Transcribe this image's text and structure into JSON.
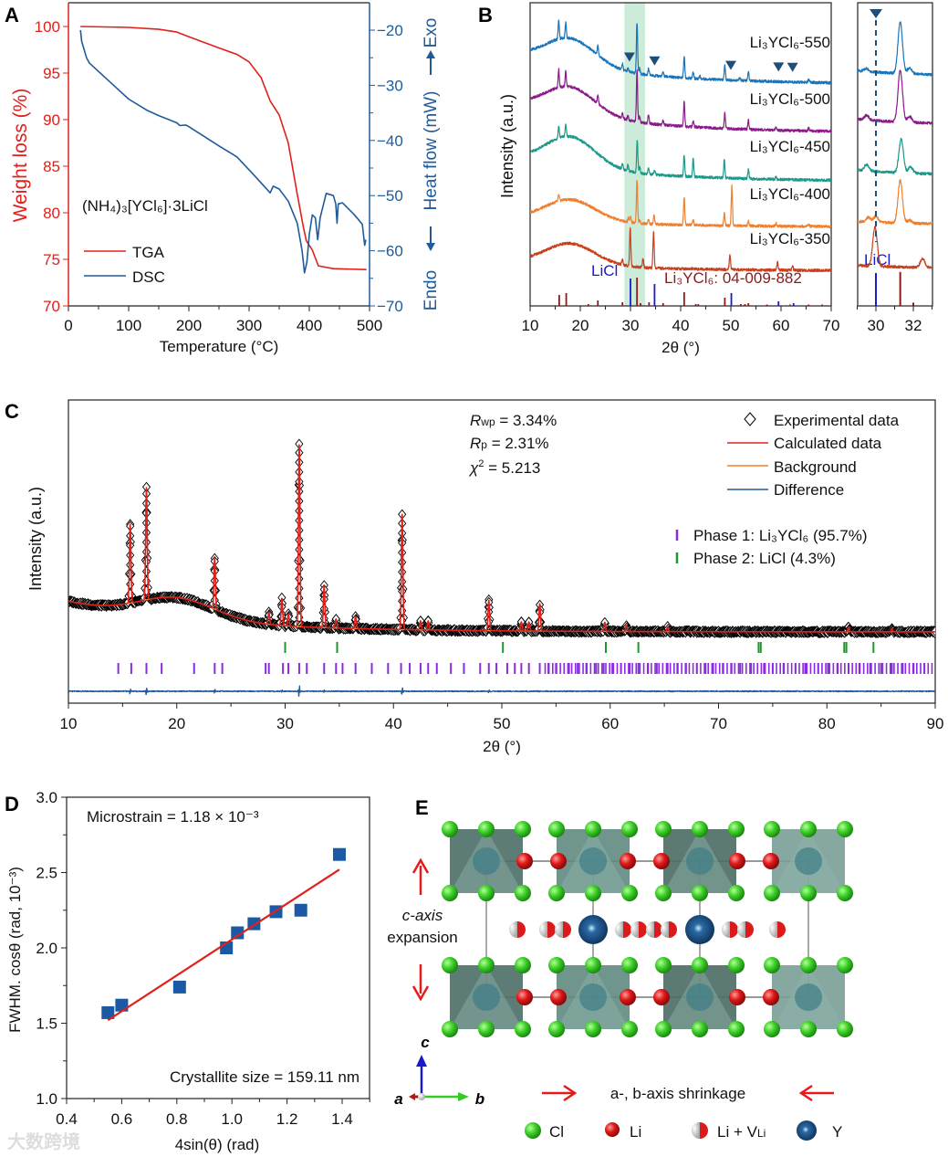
{
  "panels": {
    "a": "A",
    "b": "B",
    "c": "C",
    "d": "D",
    "e": "E"
  },
  "watermark": "大数跨境",
  "chart_data": [
    {
      "id": "A",
      "type": "line",
      "title": "",
      "xlabel": "Temperature (°C)",
      "ylabel": "Weight loss (%)",
      "y2label": "Heat flow (mW)",
      "exo_label": "Exo",
      "endo_label": "Endo",
      "annotation": "(NH₄)₃[YCl₆]·3LiCl",
      "xlim": [
        0,
        500
      ],
      "ylim": [
        70,
        102.5
      ],
      "y2lim": [
        -70,
        -15.5
      ],
      "xticks": [
        0,
        100,
        200,
        300,
        400,
        500
      ],
      "yticks": [
        70,
        75,
        80,
        85,
        90,
        95,
        100
      ],
      "y2ticks": [
        -20,
        -30,
        -40,
        -50,
        -60,
        -70
      ],
      "y2ticklabels": [
        "−20",
        "−30",
        "−40",
        "−50",
        "−60",
        "−70"
      ],
      "colors": {
        "TGA": "#e0201b",
        "DSC": "#1f5b9a"
      },
      "legend": "lower-left",
      "series": [
        {
          "name": "TGA",
          "axis": "left",
          "x": [
            20,
            100,
            150,
            180,
            200,
            250,
            280,
            300,
            320,
            335,
            350,
            365,
            380,
            390,
            395,
            405,
            415,
            440,
            495
          ],
          "y": [
            100,
            99.9,
            99.7,
            99.4,
            98.9,
            97.7,
            97,
            96.2,
            94.5,
            92,
            90.5,
            87.5,
            82,
            78.5,
            77,
            76,
            74.3,
            74,
            73.9
          ]
        },
        {
          "name": "DSC",
          "axis": "right",
          "x": [
            20,
            22,
            30,
            35,
            60,
            100,
            130,
            150,
            180,
            185,
            195,
            200,
            250,
            280,
            310,
            335,
            340,
            350,
            365,
            380,
            388,
            392,
            396,
            400,
            405,
            410,
            414,
            418,
            428,
            440,
            444,
            446,
            448,
            455,
            475,
            488,
            492,
            494
          ],
          "y": [
            -20,
            -22,
            -25,
            -26,
            -28.5,
            -32.5,
            -34.5,
            -35.5,
            -36.8,
            -37.3,
            -37.2,
            -37.5,
            -41,
            -43,
            -46.5,
            -49.5,
            -48.3,
            -48.8,
            -51,
            -55,
            -60,
            -64,
            -62,
            -57,
            -53.5,
            -54,
            -58,
            -54,
            -49.6,
            -50,
            -51.5,
            -55,
            -51.5,
            -51.3,
            -53.5,
            -55.2,
            -59,
            -58
          ]
        }
      ]
    },
    {
      "id": "B",
      "type": "line",
      "xlabel": "2θ (°)",
      "ylabel": "Intensity (a.u.)",
      "xlim": [
        10,
        70
      ],
      "xticks": [
        10,
        20,
        30,
        40,
        50,
        60,
        70
      ],
      "inset_xlim": [
        29.0,
        33.1
      ],
      "inset_xticks": [
        30,
        32
      ],
      "highlight_range": [
        28.8,
        32.9
      ],
      "marker_positions": [
        29.8,
        34.8,
        50.0,
        59.5,
        62.3
      ],
      "inset_dashed_at": 30.0,
      "series": [
        {
          "name": "Li₃YCl₆-550",
          "color": "#1b75bb",
          "offset": 77,
          "hump": 9,
          "left": 9,
          "peaks": [
            [
              15.7,
              6
            ],
            [
              17.1,
              5
            ],
            [
              23.5,
              3
            ],
            [
              28.4,
              2
            ],
            [
              29.5,
              1
            ],
            [
              31.3,
              17
            ],
            [
              31.8,
              2
            ],
            [
              33.6,
              2
            ],
            [
              36.5,
              1.5
            ],
            [
              40.7,
              7
            ],
            [
              42.5,
              2
            ],
            [
              43.8,
              1
            ],
            [
              48.8,
              5
            ],
            [
              51.8,
              1
            ],
            [
              53.5,
              3
            ],
            [
              65.5,
              1
            ]
          ]
        },
        {
          "name": "Li₃YCl₆-500",
          "color": "#8c1a8c",
          "offset": 61,
          "hump": 9,
          "left": 9,
          "peaks": [
            [
              15.7,
              6
            ],
            [
              17.1,
              5
            ],
            [
              23.5,
              3
            ],
            [
              28.4,
              2
            ],
            [
              29.5,
              1.5
            ],
            [
              31.3,
              17
            ],
            [
              31.8,
              2
            ],
            [
              33.6,
              3
            ],
            [
              36.5,
              1.5
            ],
            [
              40.7,
              8
            ],
            [
              42.5,
              2
            ],
            [
              48.8,
              5
            ],
            [
              53.5,
              3
            ],
            [
              59,
              1
            ],
            [
              65.5,
              1
            ]
          ]
        },
        {
          "name": "Li₃YCl₆-450",
          "color": "#1a9a8a",
          "offset": 45,
          "hump": 10,
          "left": 7,
          "peaks": [
            [
              15.7,
              4
            ],
            [
              17.1,
              4
            ],
            [
              28.4,
              2
            ],
            [
              29.5,
              2
            ],
            [
              31.35,
              11
            ],
            [
              31.85,
              2
            ],
            [
              33.6,
              2
            ],
            [
              34.8,
              1.5
            ],
            [
              40.7,
              7
            ],
            [
              42.5,
              6
            ],
            [
              48.7,
              6
            ],
            [
              53.5,
              3
            ],
            [
              59,
              1
            ]
          ]
        },
        {
          "name": "Li₃YCl₆-400",
          "color": "#f07f2e",
          "offset": 30,
          "hump": 7,
          "left": 3,
          "peaks": [
            [
              15.7,
              2
            ],
            [
              29.6,
              1.5
            ],
            [
              30.0,
              2
            ],
            [
              31.3,
              14
            ],
            [
              31.8,
              1
            ],
            [
              33.6,
              1.5
            ],
            [
              34.7,
              3
            ],
            [
              40.7,
              9
            ],
            [
              42.5,
              1.5
            ],
            [
              48.7,
              4
            ],
            [
              50.2,
              13
            ],
            [
              53.5,
              1.5
            ],
            [
              59,
              1
            ],
            [
              65.5,
              1
            ]
          ]
        },
        {
          "name": "Li₃YCl₆-350",
          "color": "#c8401e",
          "offset": 15.5,
          "hump": 7,
          "left": 3,
          "peaks": [
            [
              28.4,
              2
            ],
            [
              29.95,
              13
            ],
            [
              32.5,
              3
            ],
            [
              34.6,
              12
            ],
            [
              49.8,
              5
            ],
            [
              59.3,
              2.5
            ],
            [
              62.3,
              1.5
            ]
          ]
        }
      ],
      "references": [
        {
          "name": "LiCl",
          "color": "#1a1acc",
          "sticks": [
            [
              30.0,
              30
            ],
            [
              34.8,
              24
            ],
            [
              50.1,
              14
            ],
            [
              59.5,
              5
            ],
            [
              62.5,
              3
            ]
          ]
        },
        {
          "name": "Li₃YCl₆: 04-009-882",
          "color": "#8b1a1a",
          "sticks": [
            [
              15.8,
              12
            ],
            [
              17.2,
              14
            ],
            [
              21.6,
              2
            ],
            [
              23.5,
              6
            ],
            [
              28.4,
              4
            ],
            [
              31.3,
              31
            ],
            [
              32.0,
              3
            ],
            [
              33.7,
              4
            ],
            [
              36.5,
              3
            ],
            [
              40.7,
              15
            ],
            [
              43.0,
              2
            ],
            [
              43.5,
              2
            ],
            [
              48.8,
              9
            ],
            [
              52.0,
              2
            ],
            [
              52.8,
              2
            ],
            [
              53.5,
              3
            ],
            [
              57.2,
              1.5
            ],
            [
              61.8,
              1.5
            ],
            [
              65.5,
              1.5
            ],
            [
              68.2,
              1.5
            ]
          ]
        }
      ]
    },
    {
      "id": "C",
      "type": "line",
      "xlabel": "2θ (°)",
      "ylabel": "Intensity (a.u.)",
      "xlim": [
        10,
        90
      ],
      "xticks": [
        10,
        20,
        30,
        40,
        50,
        60,
        70,
        80,
        90
      ],
      "stats": {
        "rwp_sym": "R",
        "rwp_sub": "wp",
        "rwp_val": " = 3.34%",
        "rp_sym": "R",
        "rp_sub": "p",
        "rp_val": " = 2.31%",
        "chi_sym": "χ",
        "chi_sup": "2",
        "chi_val": " = 5.213"
      },
      "legend_items": [
        "Experimental data",
        "Calculated data",
        "Background",
        "Difference"
      ],
      "phase_items": [
        "Phase 1: Li₃YCl₆ (95.7%)",
        "Phase 2: LiCl (4.3%)"
      ],
      "phase_fractions": [
        95.7,
        4.3
      ],
      "colors": {
        "experimental": "#000000",
        "calculated": "#e0201b",
        "background": "#f07f2e",
        "difference": "#1f5b9a",
        "phase1": "#8a2be2",
        "phase2": "#1a9a2a"
      },
      "background": {
        "base": 23.5,
        "decay_amp": 10,
        "decay_len": 12,
        "hump_center": 20,
        "hump_amp": 7,
        "hump_width": 3.5
      },
      "peaks": [
        [
          15.7,
          26
        ],
        [
          17.2,
          37
        ],
        [
          23.5,
          17
        ],
        [
          28.5,
          4
        ],
        [
          29.7,
          9
        ],
        [
          30.3,
          4
        ],
        [
          31.3,
          60
        ],
        [
          33.6,
          14
        ],
        [
          34.7,
          3
        ],
        [
          36.5,
          4
        ],
        [
          40.8,
          38
        ],
        [
          42.5,
          3
        ],
        [
          43.2,
          3
        ],
        [
          48.8,
          10
        ],
        [
          51.8,
          3
        ],
        [
          52.5,
          3
        ],
        [
          53.5,
          9
        ],
        [
          59.5,
          3
        ],
        [
          61.5,
          2
        ],
        [
          65.3,
          1.5
        ],
        [
          82,
          1.5
        ],
        [
          86,
          1
        ]
      ],
      "phase2_ticks": [
        30.0,
        34.8,
        50.1,
        59.6,
        62.6,
        73.7,
        73.9,
        81.6,
        81.8,
        84.3
      ],
      "phase1_ticks": [
        14.6,
        15.8,
        17.2,
        18.6,
        21.6,
        23.5,
        24.2,
        28.2,
        28.5,
        29.8,
        30.3,
        31.3,
        32.0,
        33.6,
        34.7,
        35.3,
        36.5,
        38.0,
        39.5,
        40.7,
        41.5,
        42.5,
        43.2,
        44.0,
        45.3,
        46.5,
        48.0,
        48.8,
        49.5,
        50.5,
        51.2,
        51.8,
        52.5,
        53.5,
        54.3,
        55.0,
        56.2,
        57.0,
        57.8,
        58.7,
        59.4,
        60.2,
        61.0,
        61.8,
        62.6,
        63.5,
        64.3,
        65.3,
        66.2,
        67.0,
        68.0,
        68.8,
        69.5,
        70.4,
        71.2,
        72.0,
        73.0,
        74.2,
        75.0,
        76.0,
        77.1,
        78.0,
        79.2,
        80.1,
        81.0,
        82.0,
        83.0,
        84.0,
        85.0,
        86.0,
        87.0,
        88.0,
        89.0
      ]
    },
    {
      "id": "D",
      "type": "scatter",
      "xlabel": "4sin(θ) (rad)",
      "ylabel": "FWHM. cosθ (rad, 10⁻³)",
      "xlim": [
        0.4,
        1.5
      ],
      "ylim": [
        1.0,
        3.0
      ],
      "xticks": [
        0.4,
        0.6,
        0.8,
        1.0,
        1.2,
        1.4
      ],
      "xticklabels": [
        "0.4",
        "0.6",
        "0.8",
        "1.0",
        "1.2",
        "1.4"
      ],
      "yticks": [
        1.0,
        1.5,
        2.0,
        2.5,
        3.0
      ],
      "yticklabels": [
        "1.0",
        "1.5",
        "2.0",
        "2.5",
        "3.0"
      ],
      "x": [
        0.55,
        0.6,
        0.81,
        0.98,
        1.02,
        1.08,
        1.16,
        1.25,
        1.39
      ],
      "y": [
        1.57,
        1.62,
        1.74,
        2.0,
        2.1,
        2.16,
        2.24,
        2.25,
        2.62
      ],
      "fit": {
        "x": [
          0.55,
          1.39
        ],
        "y": [
          1.52,
          2.52
        ]
      },
      "annotations": {
        "microstrain": "Microstrain = 1.18 × 10⁻³",
        "crystallite": "Crystallite size = 159.11 nm"
      },
      "colors": {
        "points": "#1a5aa5",
        "fit": "#e0201b"
      }
    }
  ],
  "structure": {
    "c_axis_line1": "c-axis",
    "c_axis_line2": "expansion",
    "ab_shrink": "a-, b-axis shrinkage",
    "axis_a": "a",
    "axis_b": "b",
    "axis_c": "c",
    "legend": [
      {
        "label": "Cl",
        "color": "#33cc22"
      },
      {
        "label": "Li",
        "color": "#dd1a1a"
      },
      {
        "label": "Li + V",
        "sub": "Li",
        "color": "#dd1a1a"
      },
      {
        "label": "Y",
        "color": "#1a4f80"
      }
    ]
  }
}
